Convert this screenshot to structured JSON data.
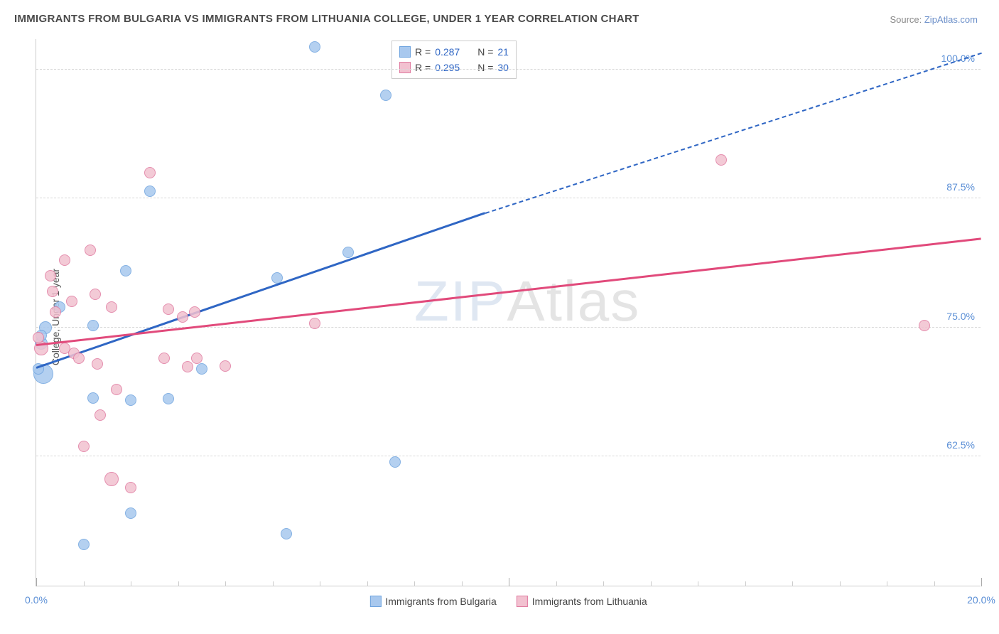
{
  "title": "IMMIGRANTS FROM BULGARIA VS IMMIGRANTS FROM LITHUANIA COLLEGE, UNDER 1 YEAR CORRELATION CHART",
  "source_prefix": "Source: ",
  "source_link": "ZipAtlas.com",
  "ylabel": "College, Under 1 year",
  "watermark_a": "ZIP",
  "watermark_b": "Atlas",
  "chart": {
    "type": "scatter-with-regression",
    "xmin": 0.0,
    "xmax": 20.0,
    "ymin": 50.0,
    "ymax": 103.0,
    "x_tick_label_left": "0.0%",
    "x_tick_label_right": "20.0%",
    "y_ticks": [
      62.5,
      75.0,
      87.5,
      100.0
    ],
    "y_tick_labels": [
      "62.5%",
      "75.0%",
      "87.5%",
      "100.0%"
    ],
    "y_tick_color": "#5b8fd6",
    "grid_color": "#d8d8d8",
    "background": "#ffffff",
    "x_minor_count": 20,
    "x_major_positions": [
      0,
      10,
      20
    ],
    "series": [
      {
        "name": "Immigrants from Bulgaria",
        "fill": "#a8c8ee",
        "stroke": "#6fa4df",
        "line_color": "#2f66c4",
        "r_label": "R = ",
        "r_value": "0.287",
        "n_label": "N = ",
        "n_value": "21",
        "trend": {
          "x0": 0.0,
          "y0": 71.0,
          "x1": 9.5,
          "y1": 86.0,
          "dash_x1": 20.0,
          "dash_y1": 101.5
        },
        "points": [
          {
            "x": 0.15,
            "y": 70.5,
            "r": 14
          },
          {
            "x": 0.1,
            "y": 73.5,
            "r": 9
          },
          {
            "x": 0.2,
            "y": 75.0,
            "r": 9
          },
          {
            "x": 0.1,
            "y": 74.2,
            "r": 8
          },
          {
            "x": 0.5,
            "y": 77.0,
            "r": 8
          },
          {
            "x": 1.2,
            "y": 75.2,
            "r": 8
          },
          {
            "x": 1.2,
            "y": 68.2,
            "r": 8
          },
          {
            "x": 1.9,
            "y": 80.5,
            "r": 8
          },
          {
            "x": 2.4,
            "y": 88.2,
            "r": 8
          },
          {
            "x": 2.0,
            "y": 68.0,
            "r": 8
          },
          {
            "x": 2.0,
            "y": 57.0,
            "r": 8
          },
          {
            "x": 2.8,
            "y": 68.1,
            "r": 8
          },
          {
            "x": 1.0,
            "y": 54.0,
            "r": 8
          },
          {
            "x": 5.1,
            "y": 79.8,
            "r": 8
          },
          {
            "x": 5.3,
            "y": 55.0,
            "r": 8
          },
          {
            "x": 5.9,
            "y": 102.2,
            "r": 8
          },
          {
            "x": 6.6,
            "y": 82.3,
            "r": 8
          },
          {
            "x": 7.4,
            "y": 97.5,
            "r": 8
          },
          {
            "x": 7.6,
            "y": 62.0,
            "r": 8
          },
          {
            "x": 3.5,
            "y": 71.0,
            "r": 8
          },
          {
            "x": 0.05,
            "y": 71.0,
            "r": 8
          }
        ]
      },
      {
        "name": "Immigrants from Lithuania",
        "fill": "#f2c1d0",
        "stroke": "#e07ba0",
        "line_color": "#e14a7b",
        "r_label": "R = ",
        "r_value": "0.295",
        "n_label": "N = ",
        "n_value": "30",
        "trend": {
          "x0": 0.0,
          "y0": 73.2,
          "x1": 20.0,
          "y1": 83.5
        },
        "points": [
          {
            "x": 0.1,
            "y": 73.0,
            "r": 10
          },
          {
            "x": 0.3,
            "y": 80.0,
            "r": 8
          },
          {
            "x": 0.35,
            "y": 78.5,
            "r": 8
          },
          {
            "x": 0.4,
            "y": 76.5,
            "r": 8
          },
          {
            "x": 0.6,
            "y": 81.5,
            "r": 8
          },
          {
            "x": 0.75,
            "y": 77.5,
            "r": 8
          },
          {
            "x": 0.8,
            "y": 72.5,
            "r": 8
          },
          {
            "x": 0.9,
            "y": 72.0,
            "r": 8
          },
          {
            "x": 1.0,
            "y": 63.5,
            "r": 8
          },
          {
            "x": 1.15,
            "y": 82.5,
            "r": 8
          },
          {
            "x": 1.25,
            "y": 78.2,
            "r": 8
          },
          {
            "x": 1.3,
            "y": 71.5,
            "r": 8
          },
          {
            "x": 1.35,
            "y": 66.5,
            "r": 8
          },
          {
            "x": 1.6,
            "y": 77.0,
            "r": 8
          },
          {
            "x": 1.6,
            "y": 60.3,
            "r": 10
          },
          {
            "x": 1.7,
            "y": 69.0,
            "r": 8
          },
          {
            "x": 2.0,
            "y": 59.5,
            "r": 8
          },
          {
            "x": 2.4,
            "y": 90.0,
            "r": 8
          },
          {
            "x": 2.7,
            "y": 72.0,
            "r": 8
          },
          {
            "x": 2.8,
            "y": 76.8,
            "r": 8
          },
          {
            "x": 3.1,
            "y": 76.0,
            "r": 8
          },
          {
            "x": 3.2,
            "y": 71.2,
            "r": 8
          },
          {
            "x": 3.35,
            "y": 76.5,
            "r": 8
          },
          {
            "x": 3.4,
            "y": 72.0,
            "r": 8
          },
          {
            "x": 4.0,
            "y": 71.3,
            "r": 8
          },
          {
            "x": 5.9,
            "y": 75.4,
            "r": 8
          },
          {
            "x": 14.5,
            "y": 91.2,
            "r": 8
          },
          {
            "x": 18.8,
            "y": 75.2,
            "r": 8
          },
          {
            "x": 0.05,
            "y": 74.0,
            "r": 8
          },
          {
            "x": 0.6,
            "y": 73.0,
            "r": 8
          }
        ]
      }
    ],
    "legend_bottom": [
      {
        "label": "Immigrants from Bulgaria",
        "fill": "#a8c8ee",
        "stroke": "#6fa4df"
      },
      {
        "label": "Immigrants from Lithuania",
        "fill": "#f2c1d0",
        "stroke": "#e07ba0"
      }
    ]
  }
}
